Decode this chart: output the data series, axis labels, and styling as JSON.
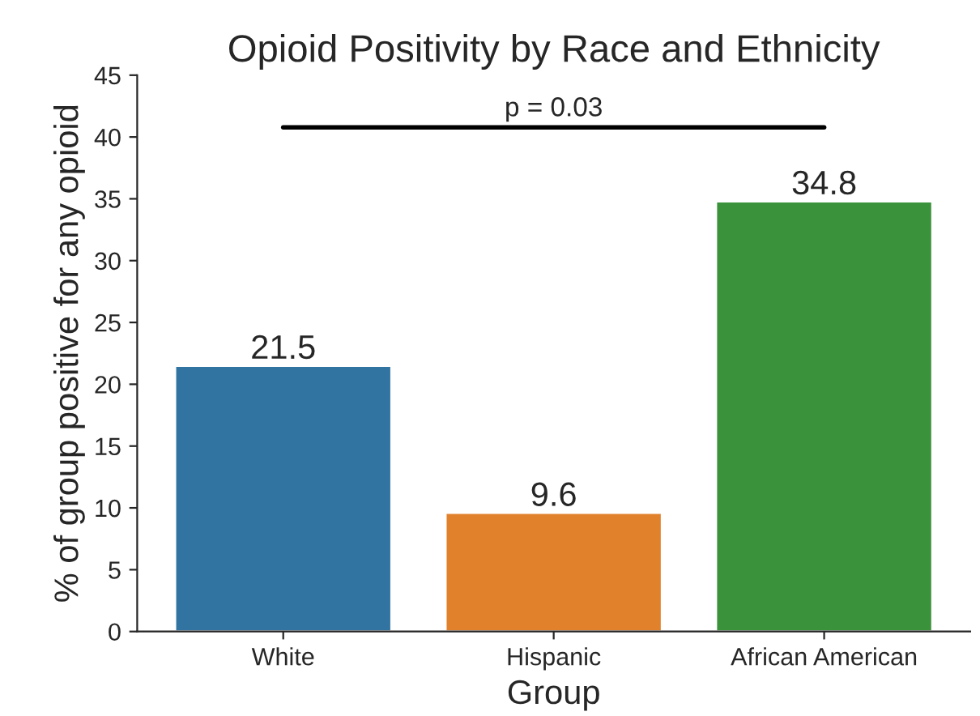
{
  "chart_data": {
    "type": "bar",
    "title": "Opioid Positivity by Race and Ethnicity",
    "xlabel": "Group",
    "ylabel": "% of group positive for any opioid",
    "categories": [
      "White",
      "Hispanic",
      "African American"
    ],
    "values": [
      21.5,
      9.6,
      34.8
    ],
    "colors": [
      "#3274a1",
      "#e1812c",
      "#3a923a"
    ],
    "ylim": [
      0,
      45
    ],
    "yticks": [
      0,
      5,
      10,
      15,
      20,
      25,
      30,
      35,
      40,
      45
    ],
    "data_labels": true,
    "grid": false,
    "legend": false,
    "annotations": [
      "p = 0.03"
    ]
  }
}
